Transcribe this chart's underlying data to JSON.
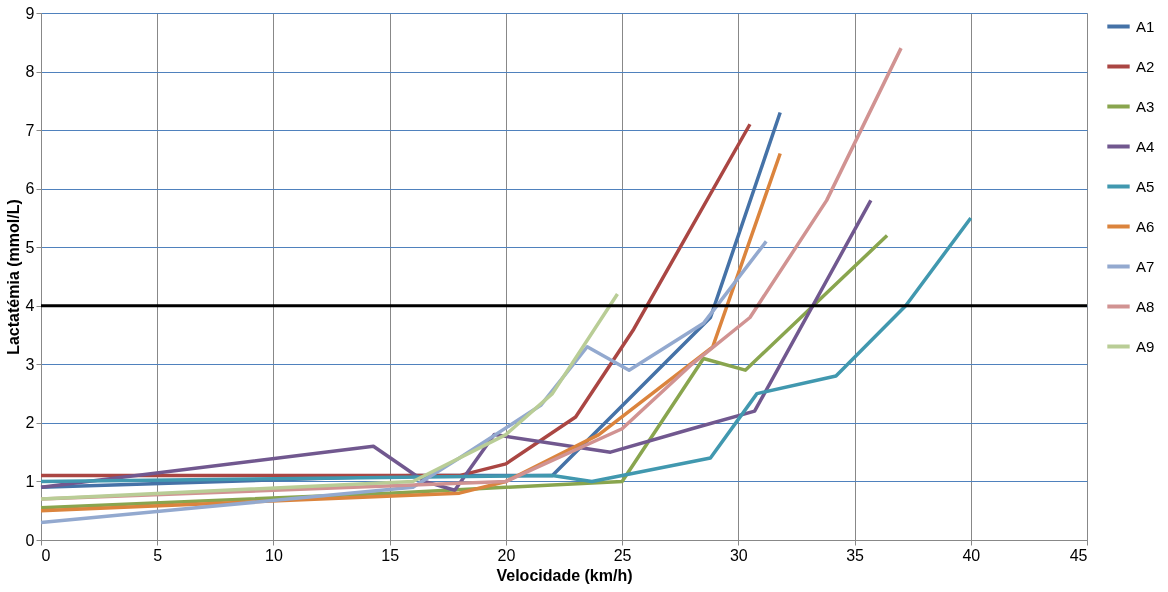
{
  "chart_data": {
    "type": "line",
    "xlabel": "Velocidade (km/h)",
    "ylabel": "Lactatémia (mmol/L)",
    "xlim": [
      0,
      45
    ],
    "xticks": [
      0,
      5,
      10,
      15,
      20,
      25,
      30,
      35,
      40,
      45
    ],
    "ylim": [
      0,
      9
    ],
    "yticks": [
      0,
      1,
      2,
      3,
      4,
      5,
      6,
      7,
      8,
      9
    ],
    "grid": true,
    "legend": "right",
    "marker": "none",
    "line_style": "solid",
    "ref_lines": [
      {
        "axis": "y",
        "value": 4,
        "color": "#000000"
      }
    ],
    "series": [
      {
        "name": "A1",
        "color": "#4572a7",
        "x": [
          0,
          16,
          22,
          28.8,
          31.8
        ],
        "values": [
          0.9,
          1.1,
          1.1,
          3.8,
          7.3
        ]
      },
      {
        "name": "A2",
        "color": "#aa4643",
        "x": [
          0,
          18,
          20,
          23,
          25.5,
          30.5
        ],
        "values": [
          1.1,
          1.1,
          1.3,
          2.1,
          3.6,
          7.1
        ]
      },
      {
        "name": "A3",
        "color": "#89a54e",
        "x": [
          0,
          15,
          20,
          25,
          28.5,
          30.3,
          36.4
        ],
        "values": [
          0.55,
          0.8,
          0.9,
          1.0,
          3.1,
          2.9,
          5.2
        ]
      },
      {
        "name": "A4",
        "color": "#71588f",
        "x": [
          0,
          14.3,
          16.5,
          17.8,
          19.5,
          24.5,
          28,
          30.7,
          35.7
        ],
        "values": [
          0.9,
          1.6,
          1.0,
          0.85,
          1.8,
          1.5,
          1.9,
          2.2,
          5.8
        ]
      },
      {
        "name": "A5",
        "color": "#4198af",
        "x": [
          0,
          22,
          23.7,
          28.8,
          30.8,
          34.2,
          37.2,
          40
        ],
        "values": [
          1.0,
          1.1,
          1.0,
          1.4,
          2.5,
          2.8,
          4.0,
          5.5
        ]
      },
      {
        "name": "A6",
        "color": "#db843d",
        "x": [
          0,
          18,
          20,
          24,
          28.9,
          31.8
        ],
        "values": [
          0.5,
          0.8,
          1.0,
          1.8,
          3.3,
          6.6
        ]
      },
      {
        "name": "A7",
        "color": "#93a9cf",
        "x": [
          0,
          16,
          18,
          21.5,
          23.5,
          25.3,
          28.5,
          31.2
        ],
        "values": [
          0.3,
          0.9,
          1.4,
          2.3,
          3.3,
          2.9,
          3.7,
          5.1
        ]
      },
      {
        "name": "A8",
        "color": "#d19392",
        "x": [
          0,
          20,
          25,
          28,
          30.5,
          33.8,
          37
        ],
        "values": [
          0.7,
          1.0,
          1.9,
          3.0,
          3.8,
          5.8,
          8.4
        ]
      },
      {
        "name": "A9",
        "color": "#b9cd96",
        "x": [
          0,
          16,
          20,
          22,
          24.8
        ],
        "values": [
          0.7,
          1.0,
          1.8,
          2.5,
          4.2
        ]
      }
    ]
  }
}
